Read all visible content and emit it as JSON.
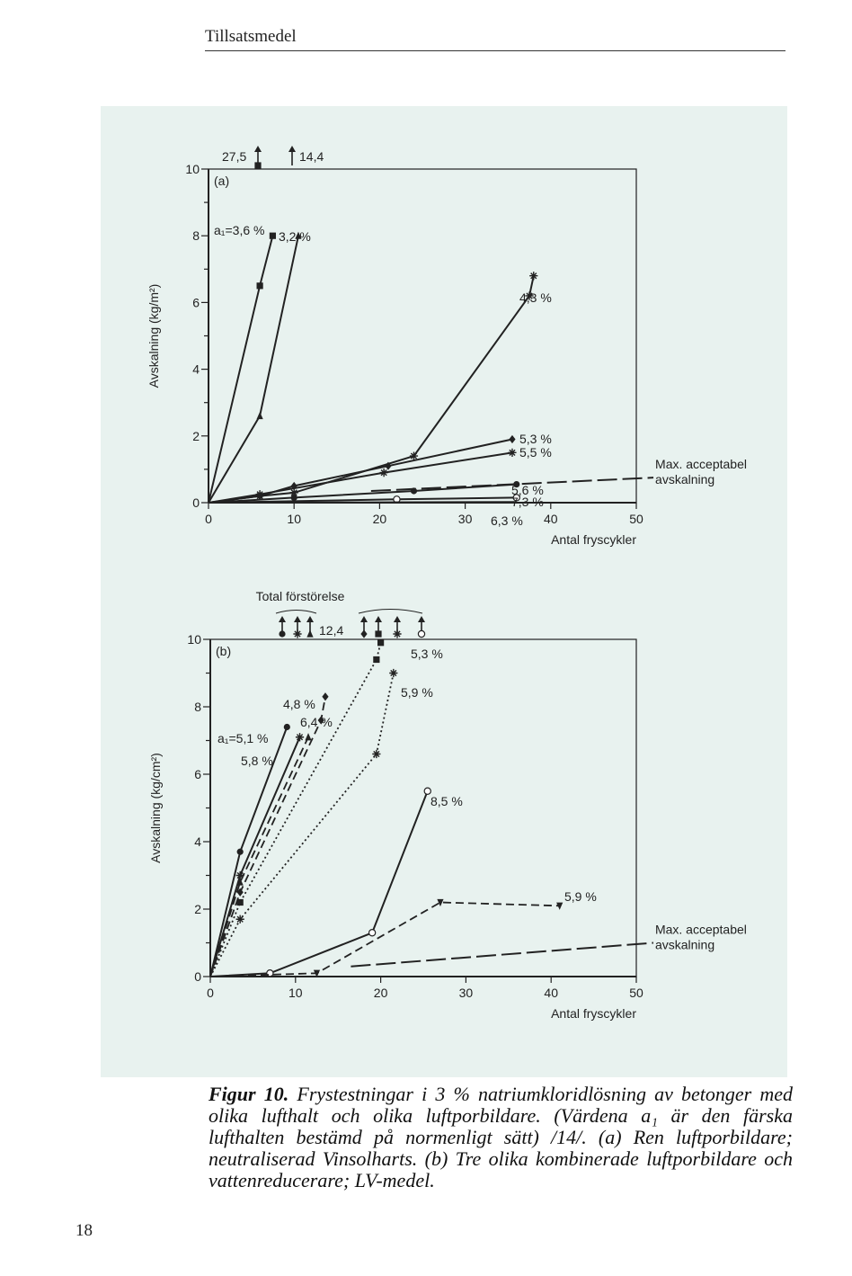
{
  "page": {
    "header": "Tillsatsmedel",
    "page_number": "18"
  },
  "caption": {
    "label": "Figur 10.",
    "text": "Frystestningar i 3 % natriumkloridlösning av betonger med olika lufthalt och olika luftporbildare. (Värdena a₁ är den färska lufthalten bestämd på normenligt sätt) /14/. (a) Ren luftporbildare; neutraliserad Vinsolharts. (b) Tre olika kombinerade luftporbildare och vattenreducerare; LV-medel."
  },
  "colors": {
    "panel_bg": "#e8f2ef",
    "ink": "#222222"
  },
  "chart_data": [
    {
      "type": "line",
      "panel_label": "(a)",
      "xlabel": "Antal fryscykler",
      "ylabel": "Avskalning (kg/m²)",
      "xlim": [
        0,
        50
      ],
      "ylim": [
        0,
        10
      ],
      "x_ticks": [
        "0",
        "10",
        "20",
        "30",
        "40",
        "50"
      ],
      "y_ticks": [
        "0",
        "2",
        "4",
        "6",
        "8",
        "10"
      ],
      "top_label_left": "27,5",
      "top_label_right": "14,4",
      "threshold": {
        "label_line1": "Max. acceptabel",
        "label_line2": "avskalning",
        "x": [
          19,
          52
        ],
        "y": [
          0.35,
          0.75
        ]
      },
      "series": [
        {
          "name": "a₁=3,6 %",
          "marker": "square",
          "style": "solid",
          "x": [
            0,
            6,
            7.5
          ],
          "y": [
            0,
            6.5,
            8
          ]
        },
        {
          "name": "3,2 %",
          "marker": "triangle",
          "style": "solid",
          "x": [
            0,
            6,
            10.5
          ],
          "y": [
            0,
            2.6,
            8
          ]
        },
        {
          "name": "4,3 %",
          "marker": "asterisk",
          "style": "solid",
          "x": [
            0,
            6,
            10,
            24,
            37.5,
            38
          ],
          "y": [
            0,
            0.2,
            0.3,
            1.4,
            6.2,
            6.8
          ]
        },
        {
          "name": "5,3 %",
          "marker": "diamond",
          "style": "solid",
          "x": [
            0,
            6,
            10,
            21,
            35.5
          ],
          "y": [
            0,
            0.2,
            0.5,
            1.1,
            1.9
          ]
        },
        {
          "name": "5,5 %",
          "marker": "asterisk",
          "style": "solid",
          "x": [
            0,
            6,
            20.5,
            35.5
          ],
          "y": [
            0,
            0.25,
            0.9,
            1.5
          ]
        },
        {
          "name": "5,6 %",
          "marker": "circle-filled",
          "style": "solid",
          "x": [
            0,
            10,
            24,
            36
          ],
          "y": [
            0,
            0.15,
            0.35,
            0.55
          ]
        },
        {
          "name": "7,3 %",
          "marker": "circle-open",
          "style": "solid",
          "x": [
            0,
            22,
            36
          ],
          "y": [
            0,
            0.1,
            0.15
          ]
        },
        {
          "name": "6,3 %",
          "marker": "none",
          "style": "solid",
          "x": [
            0,
            36
          ],
          "y": [
            0,
            0.02
          ]
        }
      ]
    },
    {
      "type": "line",
      "panel_label": "(b)",
      "xlabel": "Antal fryscykler",
      "ylabel": "Avskalning (kg/cm²)",
      "xlim": [
        0,
        50
      ],
      "ylim": [
        0,
        10
      ],
      "x_ticks": [
        "0",
        "10",
        "20",
        "30",
        "40",
        "50"
      ],
      "y_ticks": [
        "0",
        "2",
        "4",
        "6",
        "8",
        "10"
      ],
      "top_group_label": "Total förstörelse",
      "top_value_label": "12,4",
      "threshold": {
        "label_line1": "Max. acceptabel",
        "label_line2": "avskalning",
        "x": [
          16.5,
          52
        ],
        "y": [
          0.3,
          1.0
        ]
      },
      "series": [
        {
          "name": "a₁=5,1 %",
          "marker": "circle-filled",
          "style": "solid",
          "x": [
            0,
            3.5,
            9
          ],
          "y": [
            0,
            3.7,
            7.4
          ]
        },
        {
          "name": "5,8 %",
          "marker": "asterisk",
          "style": "solid",
          "x": [
            0,
            3.5,
            10.5
          ],
          "y": [
            0,
            3,
            7.1
          ]
        },
        {
          "name": "6,4 %",
          "marker": "triangle",
          "style": "dashed",
          "x": [
            0,
            3.5,
            11.5
          ],
          "y": [
            0,
            2.8,
            7.1
          ]
        },
        {
          "name": "4,8 %",
          "marker": "diamond",
          "style": "dashed",
          "x": [
            0,
            3.5,
            13,
            13.5
          ],
          "y": [
            0,
            2.5,
            7.6,
            8.3
          ]
        },
        {
          "name": "5,3 %",
          "marker": "square",
          "style": "dotted",
          "x": [
            0,
            3.5,
            19.5,
            20
          ],
          "y": [
            0,
            2.2,
            9.4,
            9.9
          ]
        },
        {
          "name": "5,9 %",
          "marker": "asterisk",
          "style": "dotted",
          "x": [
            0,
            3.5,
            19.5,
            21.5
          ],
          "y": [
            0,
            1.7,
            6.6,
            9
          ]
        },
        {
          "name": "8,5 %",
          "marker": "circle-open",
          "style": "solid",
          "x": [
            0,
            7,
            19,
            25.5
          ],
          "y": [
            0,
            0.1,
            1.3,
            5.5
          ]
        },
        {
          "name": "5,9 %",
          "marker": "triangle-down",
          "style": "dashed",
          "x": [
            0,
            12.5,
            27,
            41
          ],
          "y": [
            0,
            0.1,
            2.2,
            2.1
          ]
        }
      ]
    }
  ]
}
